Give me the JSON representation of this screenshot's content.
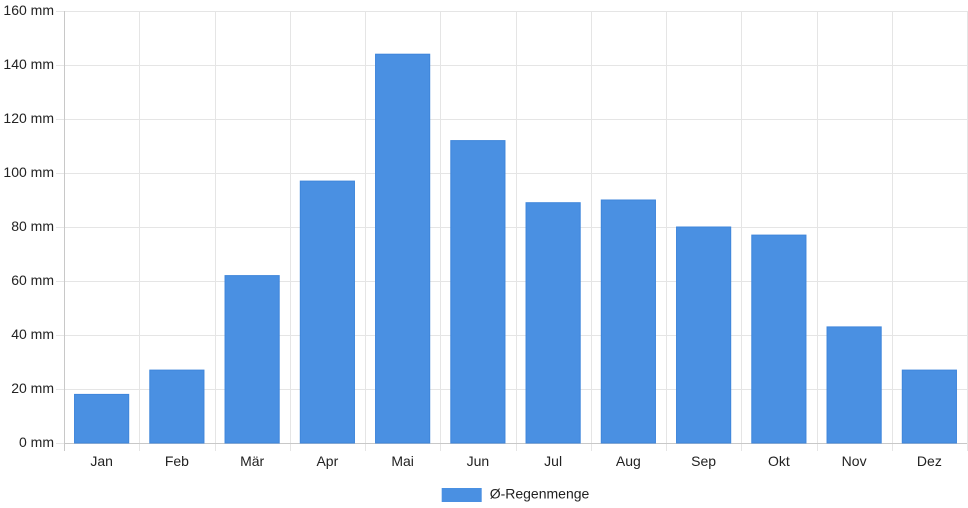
{
  "chart_data": {
    "type": "bar",
    "categories": [
      "Jan",
      "Feb",
      "Mär",
      "Apr",
      "Mai",
      "Jun",
      "Jul",
      "Aug",
      "Sep",
      "Okt",
      "Nov",
      "Dez"
    ],
    "series": [
      {
        "name": "Ø-Regenmenge",
        "color": "#4a90e2",
        "values": [
          18,
          27,
          62,
          97,
          144,
          112,
          89,
          90,
          80,
          77,
          43,
          27
        ]
      }
    ],
    "y_unit": "mm",
    "ylim": [
      0,
      160
    ],
    "yticks": [
      0,
      20,
      40,
      60,
      80,
      100,
      120,
      140,
      160
    ],
    "grid": true,
    "legend_position": "bottom-center"
  }
}
